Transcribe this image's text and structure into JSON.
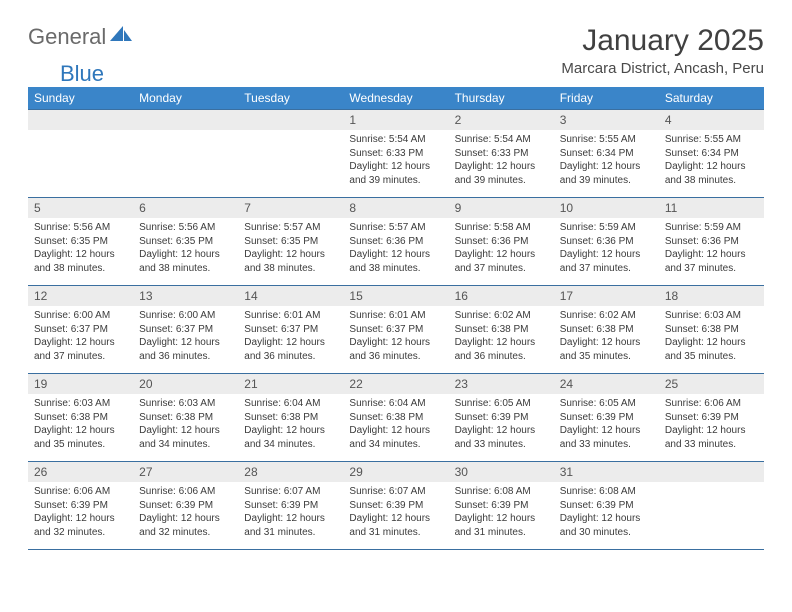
{
  "logo": {
    "text1": "General",
    "text2": "Blue",
    "shape_color": "#2f77bb"
  },
  "title": "January 2025",
  "subtitle": "Marcara District, Ancash, Peru",
  "colors": {
    "header_bg": "#3a85c9",
    "header_text": "#ffffff",
    "daynum_bg": "#ececec",
    "rule": "#3a6fa0"
  },
  "weekdays": [
    "Sunday",
    "Monday",
    "Tuesday",
    "Wednesday",
    "Thursday",
    "Friday",
    "Saturday"
  ],
  "weeks": [
    [
      {
        "n": "",
        "lines": [
          "",
          "",
          "",
          ""
        ],
        "empty": true
      },
      {
        "n": "",
        "lines": [
          "",
          "",
          "",
          ""
        ],
        "empty": true
      },
      {
        "n": "",
        "lines": [
          "",
          "",
          "",
          ""
        ],
        "empty": true
      },
      {
        "n": "1",
        "lines": [
          "Sunrise: 5:54 AM",
          "Sunset: 6:33 PM",
          "Daylight: 12 hours",
          "and 39 minutes."
        ]
      },
      {
        "n": "2",
        "lines": [
          "Sunrise: 5:54 AM",
          "Sunset: 6:33 PM",
          "Daylight: 12 hours",
          "and 39 minutes."
        ]
      },
      {
        "n": "3",
        "lines": [
          "Sunrise: 5:55 AM",
          "Sunset: 6:34 PM",
          "Daylight: 12 hours",
          "and 39 minutes."
        ]
      },
      {
        "n": "4",
        "lines": [
          "Sunrise: 5:55 AM",
          "Sunset: 6:34 PM",
          "Daylight: 12 hours",
          "and 38 minutes."
        ]
      }
    ],
    [
      {
        "n": "5",
        "lines": [
          "Sunrise: 5:56 AM",
          "Sunset: 6:35 PM",
          "Daylight: 12 hours",
          "and 38 minutes."
        ]
      },
      {
        "n": "6",
        "lines": [
          "Sunrise: 5:56 AM",
          "Sunset: 6:35 PM",
          "Daylight: 12 hours",
          "and 38 minutes."
        ]
      },
      {
        "n": "7",
        "lines": [
          "Sunrise: 5:57 AM",
          "Sunset: 6:35 PM",
          "Daylight: 12 hours",
          "and 38 minutes."
        ]
      },
      {
        "n": "8",
        "lines": [
          "Sunrise: 5:57 AM",
          "Sunset: 6:36 PM",
          "Daylight: 12 hours",
          "and 38 minutes."
        ]
      },
      {
        "n": "9",
        "lines": [
          "Sunrise: 5:58 AM",
          "Sunset: 6:36 PM",
          "Daylight: 12 hours",
          "and 37 minutes."
        ]
      },
      {
        "n": "10",
        "lines": [
          "Sunrise: 5:59 AM",
          "Sunset: 6:36 PM",
          "Daylight: 12 hours",
          "and 37 minutes."
        ]
      },
      {
        "n": "11",
        "lines": [
          "Sunrise: 5:59 AM",
          "Sunset: 6:36 PM",
          "Daylight: 12 hours",
          "and 37 minutes."
        ]
      }
    ],
    [
      {
        "n": "12",
        "lines": [
          "Sunrise: 6:00 AM",
          "Sunset: 6:37 PM",
          "Daylight: 12 hours",
          "and 37 minutes."
        ]
      },
      {
        "n": "13",
        "lines": [
          "Sunrise: 6:00 AM",
          "Sunset: 6:37 PM",
          "Daylight: 12 hours",
          "and 36 minutes."
        ]
      },
      {
        "n": "14",
        "lines": [
          "Sunrise: 6:01 AM",
          "Sunset: 6:37 PM",
          "Daylight: 12 hours",
          "and 36 minutes."
        ]
      },
      {
        "n": "15",
        "lines": [
          "Sunrise: 6:01 AM",
          "Sunset: 6:37 PM",
          "Daylight: 12 hours",
          "and 36 minutes."
        ]
      },
      {
        "n": "16",
        "lines": [
          "Sunrise: 6:02 AM",
          "Sunset: 6:38 PM",
          "Daylight: 12 hours",
          "and 36 minutes."
        ]
      },
      {
        "n": "17",
        "lines": [
          "Sunrise: 6:02 AM",
          "Sunset: 6:38 PM",
          "Daylight: 12 hours",
          "and 35 minutes."
        ]
      },
      {
        "n": "18",
        "lines": [
          "Sunrise: 6:03 AM",
          "Sunset: 6:38 PM",
          "Daylight: 12 hours",
          "and 35 minutes."
        ]
      }
    ],
    [
      {
        "n": "19",
        "lines": [
          "Sunrise: 6:03 AM",
          "Sunset: 6:38 PM",
          "Daylight: 12 hours",
          "and 35 minutes."
        ]
      },
      {
        "n": "20",
        "lines": [
          "Sunrise: 6:03 AM",
          "Sunset: 6:38 PM",
          "Daylight: 12 hours",
          "and 34 minutes."
        ]
      },
      {
        "n": "21",
        "lines": [
          "Sunrise: 6:04 AM",
          "Sunset: 6:38 PM",
          "Daylight: 12 hours",
          "and 34 minutes."
        ]
      },
      {
        "n": "22",
        "lines": [
          "Sunrise: 6:04 AM",
          "Sunset: 6:38 PM",
          "Daylight: 12 hours",
          "and 34 minutes."
        ]
      },
      {
        "n": "23",
        "lines": [
          "Sunrise: 6:05 AM",
          "Sunset: 6:39 PM",
          "Daylight: 12 hours",
          "and 33 minutes."
        ]
      },
      {
        "n": "24",
        "lines": [
          "Sunrise: 6:05 AM",
          "Sunset: 6:39 PM",
          "Daylight: 12 hours",
          "and 33 minutes."
        ]
      },
      {
        "n": "25",
        "lines": [
          "Sunrise: 6:06 AM",
          "Sunset: 6:39 PM",
          "Daylight: 12 hours",
          "and 33 minutes."
        ]
      }
    ],
    [
      {
        "n": "26",
        "lines": [
          "Sunrise: 6:06 AM",
          "Sunset: 6:39 PM",
          "Daylight: 12 hours",
          "and 32 minutes."
        ]
      },
      {
        "n": "27",
        "lines": [
          "Sunrise: 6:06 AM",
          "Sunset: 6:39 PM",
          "Daylight: 12 hours",
          "and 32 minutes."
        ]
      },
      {
        "n": "28",
        "lines": [
          "Sunrise: 6:07 AM",
          "Sunset: 6:39 PM",
          "Daylight: 12 hours",
          "and 31 minutes."
        ]
      },
      {
        "n": "29",
        "lines": [
          "Sunrise: 6:07 AM",
          "Sunset: 6:39 PM",
          "Daylight: 12 hours",
          "and 31 minutes."
        ]
      },
      {
        "n": "30",
        "lines": [
          "Sunrise: 6:08 AM",
          "Sunset: 6:39 PM",
          "Daylight: 12 hours",
          "and 31 minutes."
        ]
      },
      {
        "n": "31",
        "lines": [
          "Sunrise: 6:08 AM",
          "Sunset: 6:39 PM",
          "Daylight: 12 hours",
          "and 30 minutes."
        ]
      },
      {
        "n": "",
        "lines": [
          "",
          "",
          "",
          ""
        ],
        "empty": true
      }
    ]
  ]
}
